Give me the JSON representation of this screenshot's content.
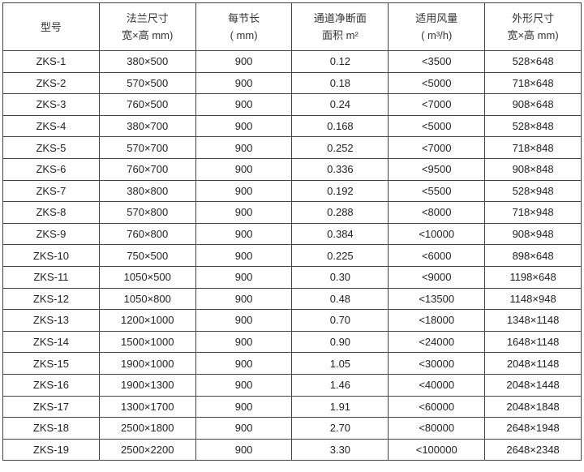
{
  "headers": [
    {
      "line1": "型号",
      "line2": ""
    },
    {
      "line1": "法兰尺寸",
      "line2": "宽×高 mm)"
    },
    {
      "line1": "每节长",
      "line2": "( mm)"
    },
    {
      "line1": "通道净断面",
      "line2": "面积 m²"
    },
    {
      "line1": "适用风量",
      "line2": "( m³/h)"
    },
    {
      "line1": "外形尺寸",
      "line2": "宽×高 mm)"
    }
  ],
  "rows": [
    [
      "ZKS-1",
      "380×500",
      "900",
      "0.12",
      "<3500",
      "528×648"
    ],
    [
      "ZKS-2",
      "570×500",
      "900",
      "0.18",
      "<5000",
      "718×648"
    ],
    [
      "ZKS-3",
      "760×500",
      "900",
      "0.24",
      "<7000",
      "908×648"
    ],
    [
      "ZKS-4",
      "380×700",
      "900",
      "0.168",
      "<5000",
      "528×848"
    ],
    [
      "ZKS-5",
      "570×700",
      "900",
      "0.252",
      "<7000",
      "718×848"
    ],
    [
      "ZKS-6",
      "760×700",
      "900",
      "0.336",
      "<9500",
      "908×848"
    ],
    [
      "ZKS-7",
      "380×800",
      "900",
      "0.192",
      "<5500",
      "528×948"
    ],
    [
      "ZKS-8",
      "570×800",
      "900",
      "0.288",
      "<8000",
      "718×948"
    ],
    [
      "ZKS-9",
      "760×800",
      "900",
      "0.384",
      "<10000",
      "908×948"
    ],
    [
      "ZKS-10",
      "750×500",
      "900",
      "0.225",
      "<6000",
      "898×648"
    ],
    [
      "ZKS-11",
      "1050×500",
      "900",
      "0.30",
      "<9000",
      "1198×648"
    ],
    [
      "ZKS-12",
      "1050×800",
      "900",
      "0.48",
      "<13500",
      "1148×948"
    ],
    [
      "ZKS-13",
      "1200×1000",
      "900",
      "0.70",
      "<18000",
      "1348×1148"
    ],
    [
      "ZKS-14",
      "1500×1000",
      "900",
      "0.90",
      "<24000",
      "1648×1148"
    ],
    [
      "ZKS-15",
      "1900×1000",
      "900",
      "1.05",
      "<30000",
      "2048×1148"
    ],
    [
      "ZKS-16",
      "1900×1300",
      "900",
      "1.46",
      "<40000",
      "2048×1448"
    ],
    [
      "ZKS-17",
      "1300×1700",
      "900",
      "1.91",
      "<60000",
      "2048×1848"
    ],
    [
      "ZKS-18",
      "2500×1800",
      "900",
      "2.70",
      "<80000",
      "2648×1948"
    ],
    [
      "ZKS-19",
      "2500×2200",
      "900",
      "3.30",
      "<100000",
      "2648×2348"
    ]
  ]
}
